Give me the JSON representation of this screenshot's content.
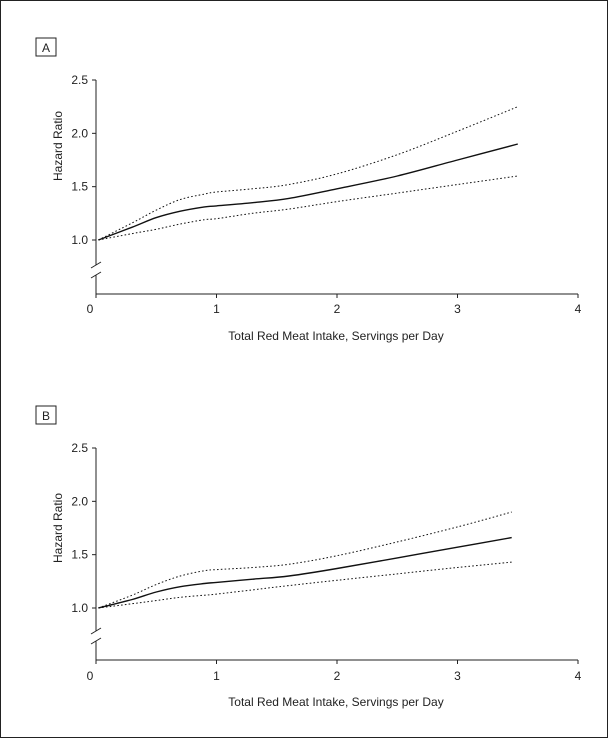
{
  "chart_data": [
    {
      "type": "line",
      "panel_label": "A",
      "xlabel": "Total Red Meat Intake, Servings per Day",
      "ylabel": "Hazard Ratio",
      "xlim": [
        0,
        4
      ],
      "ylim": [
        1.0,
        2.5
      ],
      "y_axis_break": true,
      "x_ticks": [
        0,
        1,
        2,
        3,
        4
      ],
      "y_ticks": [
        1.0,
        1.5,
        2.0,
        2.5
      ],
      "x_tick_labels": [
        "0",
        "1",
        "2",
        "3",
        "4"
      ],
      "y_tick_labels": [
        "1.0",
        "1.5",
        "2.0",
        "2.5"
      ],
      "grid": false,
      "series": [
        {
          "role": "estimate",
          "style": "solid",
          "x": [
            0.02,
            0.3,
            0.5,
            0.7,
            0.9,
            1.0,
            1.3,
            1.6,
            2.0,
            2.5,
            3.0,
            3.5
          ],
          "y": [
            1.0,
            1.12,
            1.21,
            1.27,
            1.31,
            1.32,
            1.35,
            1.39,
            1.48,
            1.6,
            1.75,
            1.9
          ]
        },
        {
          "role": "upper-ci",
          "style": "dotted",
          "x": [
            0.02,
            0.3,
            0.5,
            0.7,
            0.9,
            1.0,
            1.3,
            1.6,
            2.0,
            2.5,
            3.0,
            3.5
          ],
          "y": [
            1.0,
            1.16,
            1.28,
            1.38,
            1.43,
            1.45,
            1.48,
            1.52,
            1.62,
            1.8,
            2.02,
            2.25
          ]
        },
        {
          "role": "lower-ci",
          "style": "dotted",
          "x": [
            0.02,
            0.3,
            0.5,
            0.7,
            0.9,
            1.0,
            1.3,
            1.6,
            2.0,
            2.5,
            3.0,
            3.5
          ],
          "y": [
            1.0,
            1.06,
            1.1,
            1.15,
            1.19,
            1.2,
            1.25,
            1.29,
            1.36,
            1.44,
            1.52,
            1.6
          ]
        }
      ]
    },
    {
      "type": "line",
      "panel_label": "B",
      "xlabel": "Total Red Meat Intake, Servings per Day",
      "ylabel": "Hazard Ratio",
      "xlim": [
        0,
        4
      ],
      "ylim": [
        1.0,
        2.5
      ],
      "y_axis_break": true,
      "x_ticks": [
        0,
        1,
        2,
        3,
        4
      ],
      "y_ticks": [
        1.0,
        1.5,
        2.0,
        2.5
      ],
      "x_tick_labels": [
        "0",
        "1",
        "2",
        "3",
        "4"
      ],
      "y_tick_labels": [
        "1.0",
        "1.5",
        "2.0",
        "2.5"
      ],
      "grid": false,
      "series": [
        {
          "role": "estimate",
          "style": "solid",
          "x": [
            0.02,
            0.3,
            0.5,
            0.7,
            0.9,
            1.0,
            1.3,
            1.6,
            2.0,
            2.5,
            3.0,
            3.45
          ],
          "y": [
            1.0,
            1.08,
            1.15,
            1.2,
            1.23,
            1.24,
            1.27,
            1.3,
            1.37,
            1.47,
            1.57,
            1.66
          ]
        },
        {
          "role": "upper-ci",
          "style": "dotted",
          "x": [
            0.02,
            0.3,
            0.5,
            0.7,
            0.9,
            1.0,
            1.3,
            1.6,
            2.0,
            2.5,
            3.0,
            3.45
          ],
          "y": [
            1.0,
            1.12,
            1.22,
            1.3,
            1.35,
            1.36,
            1.38,
            1.41,
            1.49,
            1.62,
            1.76,
            1.9
          ]
        },
        {
          "role": "lower-ci",
          "style": "dotted",
          "x": [
            0.02,
            0.3,
            0.5,
            0.7,
            0.9,
            1.0,
            1.3,
            1.6,
            2.0,
            2.5,
            3.0,
            3.45
          ],
          "y": [
            1.0,
            1.04,
            1.07,
            1.1,
            1.12,
            1.13,
            1.17,
            1.21,
            1.26,
            1.32,
            1.38,
            1.43
          ]
        }
      ]
    }
  ]
}
